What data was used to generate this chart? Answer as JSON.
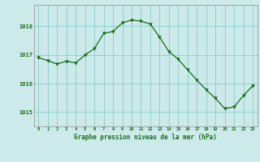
{
  "x": [
    0,
    1,
    2,
    3,
    4,
    5,
    6,
    7,
    8,
    9,
    10,
    11,
    12,
    13,
    14,
    15,
    16,
    17,
    18,
    19,
    20,
    21,
    22,
    23
  ],
  "y": [
    1016.9,
    1016.8,
    1016.68,
    1016.78,
    1016.72,
    1017.0,
    1017.22,
    1017.75,
    1017.82,
    1018.12,
    1018.22,
    1018.18,
    1018.08,
    1017.62,
    1017.12,
    1016.85,
    1016.48,
    1016.12,
    1015.78,
    1015.48,
    1015.12,
    1015.18,
    1015.58,
    1015.92
  ],
  "line_color": "#1a6b1a",
  "marker_color": "#1a6b1a",
  "bg_color": "#cceaea",
  "grid_color": "#88cccc",
  "ylabel_ticks": [
    1015,
    1016,
    1017,
    1018
  ],
  "xlim": [
    -0.5,
    23.5
  ],
  "ylim": [
    1014.5,
    1018.75
  ],
  "xlabel": "Graphe pression niveau de la mer (hPa)",
  "tick_color": "#1a6b1a"
}
